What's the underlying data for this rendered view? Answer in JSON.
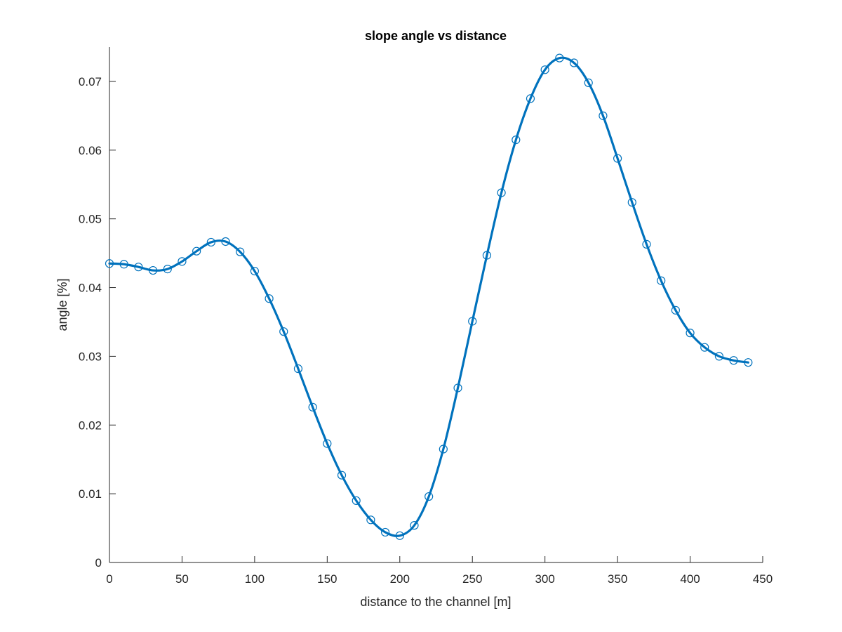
{
  "chart_data": {
    "type": "line",
    "title": "slope angle vs distance",
    "xlabel": "distance to the channel [m]",
    "ylabel": "angle [%]",
    "xlim": [
      0,
      450
    ],
    "ylim": [
      0,
      0.075
    ],
    "xticks": [
      0,
      50,
      100,
      150,
      200,
      250,
      300,
      350,
      400,
      450
    ],
    "xtick_labels": [
      "0",
      "50",
      "100",
      "150",
      "200",
      "250",
      "300",
      "350",
      "400",
      "450"
    ],
    "yticks": [
      0,
      0.01,
      0.02,
      0.03,
      0.04,
      0.05,
      0.06,
      0.07
    ],
    "ytick_labels": [
      "0",
      "0.01",
      "0.02",
      "0.03",
      "0.04",
      "0.05",
      "0.06",
      "0.07"
    ],
    "grid": false,
    "color": "#0072BD",
    "marker": "circle",
    "series": [
      {
        "x": [
          0,
          10,
          20,
          30,
          40,
          50,
          60,
          70,
          80,
          90,
          100,
          110,
          120,
          130,
          140,
          150,
          160,
          170,
          180,
          190,
          200,
          210,
          220,
          230,
          240,
          250,
          260,
          270,
          280,
          290,
          300,
          310,
          320,
          330,
          340,
          350,
          360,
          370,
          380,
          390,
          400,
          410,
          420,
          430,
          440
        ],
        "y": [
          0.0435,
          0.0434,
          0.043,
          0.0425,
          0.0427,
          0.0438,
          0.0453,
          0.0466,
          0.0467,
          0.0452,
          0.0424,
          0.0384,
          0.0336,
          0.0282,
          0.0226,
          0.0173,
          0.0127,
          0.009,
          0.0062,
          0.0044,
          0.0039,
          0.0054,
          0.0096,
          0.0165,
          0.0254,
          0.0351,
          0.0447,
          0.0538,
          0.0615,
          0.0675,
          0.0717,
          0.0734,
          0.0727,
          0.0698,
          0.065,
          0.0588,
          0.0524,
          0.0463,
          0.041,
          0.0367,
          0.0334,
          0.0313,
          0.03,
          0.0294,
          0.0291
        ]
      }
    ]
  }
}
